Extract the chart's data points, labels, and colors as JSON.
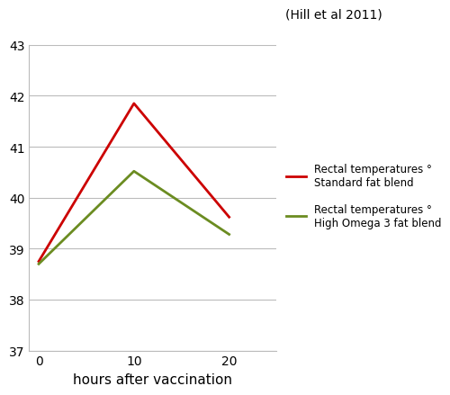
{
  "x": [
    0,
    10,
    20
  ],
  "red_y": [
    38.75,
    41.85,
    39.62
  ],
  "green_y": [
    38.7,
    40.52,
    39.28
  ],
  "red_color": "#cc0000",
  "green_color": "#6b8c21",
  "red_label_line1": "Rectal temperatures °",
  "red_label_line2": "Standard fat blend",
  "green_label_line1": "Rectal temperatures °",
  "green_label_line2": "High Omega 3 fat blend",
  "xlabel": "hours after vaccination",
  "citation": "(Hill et al 2011)",
  "ylim": [
    37,
    43
  ],
  "xlim": [
    -1,
    25
  ],
  "yticks": [
    37,
    38,
    39,
    40,
    41,
    42,
    43
  ],
  "xticks": [
    0,
    10,
    20
  ],
  "linewidth": 2.0,
  "bg_color": "#ffffff",
  "grid_color": "#bbbbbb"
}
